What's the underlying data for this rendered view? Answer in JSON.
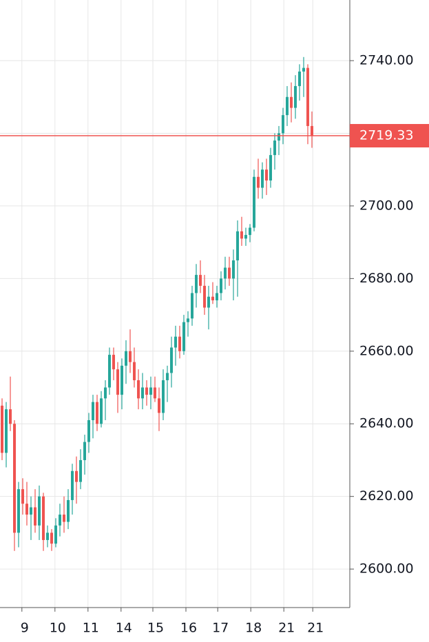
{
  "chart_data": {
    "type": "candlestick",
    "open": [
      2645,
      2632,
      2644,
      2640,
      2610,
      2622,
      2618,
      2615,
      2617,
      2612,
      2620,
      2608,
      2610,
      2607,
      2612,
      2615,
      2613,
      2619,
      2627,
      2624,
      2630,
      2635,
      2641,
      2646,
      2640,
      2647,
      2650,
      2659,
      2655,
      2648,
      2656,
      2660,
      2657,
      2652,
      2647,
      2650,
      2648,
      2650,
      2647,
      2643,
      2652,
      2654,
      2661,
      2664,
      2660,
      2668,
      2669,
      2676,
      2681,
      2678,
      2672,
      2675,
      2674,
      2676,
      2680,
      2683,
      2680,
      2685,
      2693,
      2691,
      2692,
      2694,
      2708,
      2705,
      2710,
      2707,
      2714,
      2718,
      2720,
      2725,
      2730,
      2727,
      2733,
      2737,
      2738,
      2722
    ],
    "high": [
      2647,
      2646,
      2653,
      2641,
      2624,
      2625,
      2624,
      2620,
      2622,
      2623,
      2621,
      2612,
      2611,
      2614,
      2618,
      2620,
      2622,
      2629,
      2631,
      2633,
      2637,
      2643,
      2648,
      2648,
      2649,
      2652,
      2661,
      2661,
      2657,
      2658,
      2663,
      2666,
      2661,
      2655,
      2654,
      2652,
      2653,
      2653,
      2650,
      2655,
      2656,
      2664,
      2667,
      2667,
      2670,
      2671,
      2678,
      2684,
      2685,
      2681,
      2678,
      2679,
      2678,
      2682,
      2686,
      2686,
      2688,
      2696,
      2697,
      2694,
      2695,
      2710,
      2713,
      2712,
      2713,
      2716,
      2720,
      2722,
      2727,
      2733,
      2734,
      2736,
      2739,
      2741,
      2739,
      2726
    ],
    "low": [
      2630,
      2628,
      2638,
      2605,
      2606,
      2615,
      2612,
      2608,
      2610,
      2608,
      2605,
      2606,
      2605,
      2606,
      2609,
      2610,
      2611,
      2615,
      2618,
      2622,
      2626,
      2632,
      2636,
      2638,
      2639,
      2641,
      2648,
      2652,
      2643,
      2644,
      2651,
      2654,
      2650,
      2644,
      2644,
      2645,
      2644,
      2646,
      2638,
      2641,
      2646,
      2650,
      2656,
      2658,
      2659,
      2664,
      2667,
      2672,
      2676,
      2670,
      2666,
      2673,
      2672,
      2674,
      2677,
      2678,
      2674,
      2675,
      2689,
      2689,
      2690,
      2693,
      2702,
      2702,
      2703,
      2705,
      2710,
      2714,
      2717,
      2722,
      2723,
      2724,
      2729,
      2730,
      2717,
      2716
    ],
    "close": [
      2632,
      2644,
      2640,
      2610,
      2622,
      2618,
      2615,
      2617,
      2612,
      2620,
      2608,
      2610,
      2607,
      2612,
      2615,
      2613,
      2619,
      2627,
      2624,
      2630,
      2635,
      2641,
      2646,
      2640,
      2647,
      2650,
      2659,
      2655,
      2648,
      2656,
      2660,
      2657,
      2652,
      2647,
      2650,
      2648,
      2650,
      2647,
      2643,
      2652,
      2654,
      2661,
      2664,
      2660,
      2668,
      2669,
      2676,
      2681,
      2678,
      2672,
      2675,
      2674,
      2676,
      2680,
      2683,
      2680,
      2685,
      2693,
      2691,
      2692,
      2694,
      2708,
      2705,
      2710,
      2707,
      2714,
      2718,
      2720,
      2725,
      2730,
      2727,
      2733,
      2737,
      2738,
      2722,
      2719.33
    ],
    "up_color": "#26a69a",
    "down_color": "#ef5350",
    "last_price": 2719.33,
    "last_price_color": "#ef5350",
    "xlim": [
      -0.5,
      84.17
    ],
    "ylim": [
      2589.4,
      2756.7
    ],
    "xticks": [
      {
        "value": 4.8,
        "label": "9"
      },
      {
        "value": 12.8,
        "label": "10"
      },
      {
        "value": 20.8,
        "label": "11"
      },
      {
        "value": 28.8,
        "label": "14"
      },
      {
        "value": 36.5,
        "label": "15"
      },
      {
        "value": 44.5,
        "label": "16"
      },
      {
        "value": 52.2,
        "label": "17"
      },
      {
        "value": 60.2,
        "label": "18"
      },
      {
        "value": 68.2,
        "label": "21"
      },
      {
        "value": 75.2,
        "label": "21"
      }
    ],
    "yticks": [
      {
        "value": 2600,
        "label": "2600.00"
      },
      {
        "value": 2620,
        "label": "2620.00"
      },
      {
        "value": 2640,
        "label": "2640.00"
      },
      {
        "value": 2660,
        "label": "2660.00"
      },
      {
        "value": 2680,
        "label": "2680.00"
      },
      {
        "value": 2700,
        "label": "2700.00"
      },
      {
        "value": 2720,
        "label": "2720.00"
      },
      {
        "value": 2740,
        "label": "2740.00"
      }
    ],
    "grid": true
  }
}
